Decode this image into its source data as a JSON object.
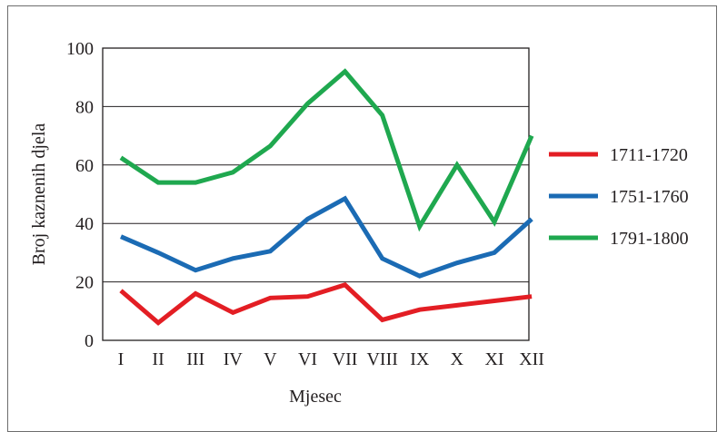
{
  "chart_data": {
    "type": "line",
    "categories": [
      "I",
      "II",
      "III",
      "IV",
      "V",
      "VI",
      "VII",
      "VIII",
      "IX",
      "X",
      "XI",
      "XII"
    ],
    "xlabel": "Mjesec",
    "ylabel": "Broj kaznenih djela",
    "ylim": [
      0,
      100
    ],
    "yticks": [
      "0",
      "20",
      "40",
      "60",
      "80",
      "100"
    ],
    "grid": true,
    "legend_position": "right",
    "series": [
      {
        "name": "1711-1720",
        "color": "#e31e24",
        "values": [
          17,
          6,
          16,
          9.5,
          14.5,
          15,
          19,
          7,
          10.5,
          12,
          13.5,
          15
        ]
      },
      {
        "name": "1751-1760",
        "color": "#1b6bb4",
        "values": [
          35.5,
          30,
          24,
          28,
          30.5,
          41.5,
          48.5,
          28,
          22,
          26.5,
          30,
          41.5
        ]
      },
      {
        "name": "1791-1800",
        "color": "#1fa84f",
        "values": [
          62.5,
          54,
          54,
          57.5,
          66.5,
          81,
          92,
          77,
          39,
          60,
          40.5,
          70
        ]
      }
    ]
  }
}
